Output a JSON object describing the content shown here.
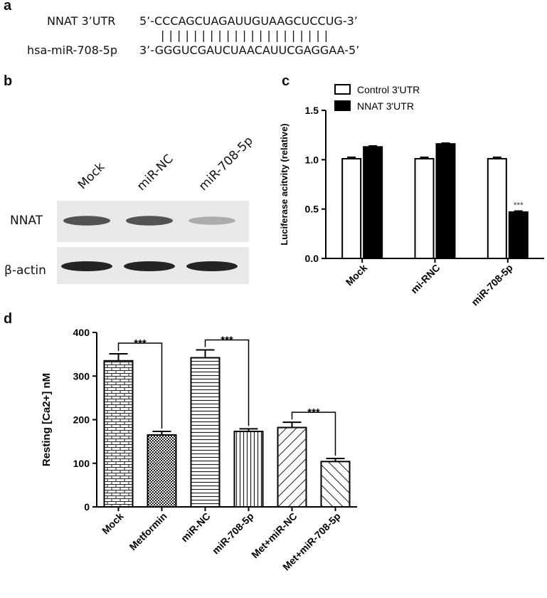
{
  "panel_labels": {
    "a": "a",
    "b": "b",
    "c": "c",
    "d": "d"
  },
  "panel_a": {
    "row1_label": "NNAT 3’UTR",
    "row1_seq": "5’-CCCAGCUAGAUUGUAAGCUCCUG-3’",
    "pairing": "|||||||||||||||||||||",
    "row2_label": "hsa-miR-708-5p",
    "row2_seq": "3’-GGGUCGAUCUAACAUUCGAGGAA-5’"
  },
  "panel_b": {
    "lanes": [
      "Mock",
      "miR-NC",
      "miR-708-5p"
    ],
    "rows": [
      "NNAT",
      "β-actin"
    ],
    "nnat_band_intensity": [
      0.85,
      0.85,
      0.35
    ],
    "actin_band_intensity": [
      0.95,
      0.95,
      0.95
    ]
  },
  "chart_data": [
    {
      "id": "c",
      "type": "bar",
      "categories": [
        "Mock",
        "mi-RNC",
        "miR-708-5p"
      ],
      "series": [
        {
          "name": "Control 3'UTR",
          "values": [
            1.01,
            1.01,
            1.01
          ],
          "errors": [
            0.015,
            0.015,
            0.015
          ],
          "color": "#ffffff"
        },
        {
          "name": "NNAT 3'UTR",
          "values": [
            1.13,
            1.16,
            0.47
          ],
          "errors": [
            0.01,
            0.008,
            0.01
          ],
          "color": "#000000"
        }
      ],
      "ylabel": "Luciferase acitvity (relative)",
      "ylim": [
        0,
        1.5
      ],
      "yticks": [
        "0.0",
        "0.5",
        "1.0",
        "1.5"
      ],
      "annotations": [
        {
          "text": "***",
          "category": "miR-708-5p",
          "series": "NNAT 3'UTR"
        }
      ],
      "legend_position": "top-left"
    },
    {
      "id": "d",
      "type": "bar",
      "categories": [
        "Mock",
        "Metformin",
        "miR-NC",
        "miR-708-5p",
        "Met+miR-NC",
        "Met+miR-708-5p"
      ],
      "values": [
        335,
        165,
        342,
        173,
        182,
        104
      ],
      "errors": [
        16,
        8,
        18,
        6,
        12,
        7
      ],
      "patterns": [
        "brick",
        "checker",
        "hlines",
        "vlines",
        "diag-up",
        "diag-down"
      ],
      "ylabel": "Resting [Ca2+] nM",
      "ylim": [
        0,
        400
      ],
      "yticks": [
        "0",
        "100",
        "200",
        "300",
        "400"
      ],
      "significance": [
        {
          "from": 0,
          "to": 1,
          "text": "***"
        },
        {
          "from": 2,
          "to": 3,
          "text": "***"
        },
        {
          "from": 4,
          "to": 5,
          "text": "***"
        }
      ]
    }
  ]
}
